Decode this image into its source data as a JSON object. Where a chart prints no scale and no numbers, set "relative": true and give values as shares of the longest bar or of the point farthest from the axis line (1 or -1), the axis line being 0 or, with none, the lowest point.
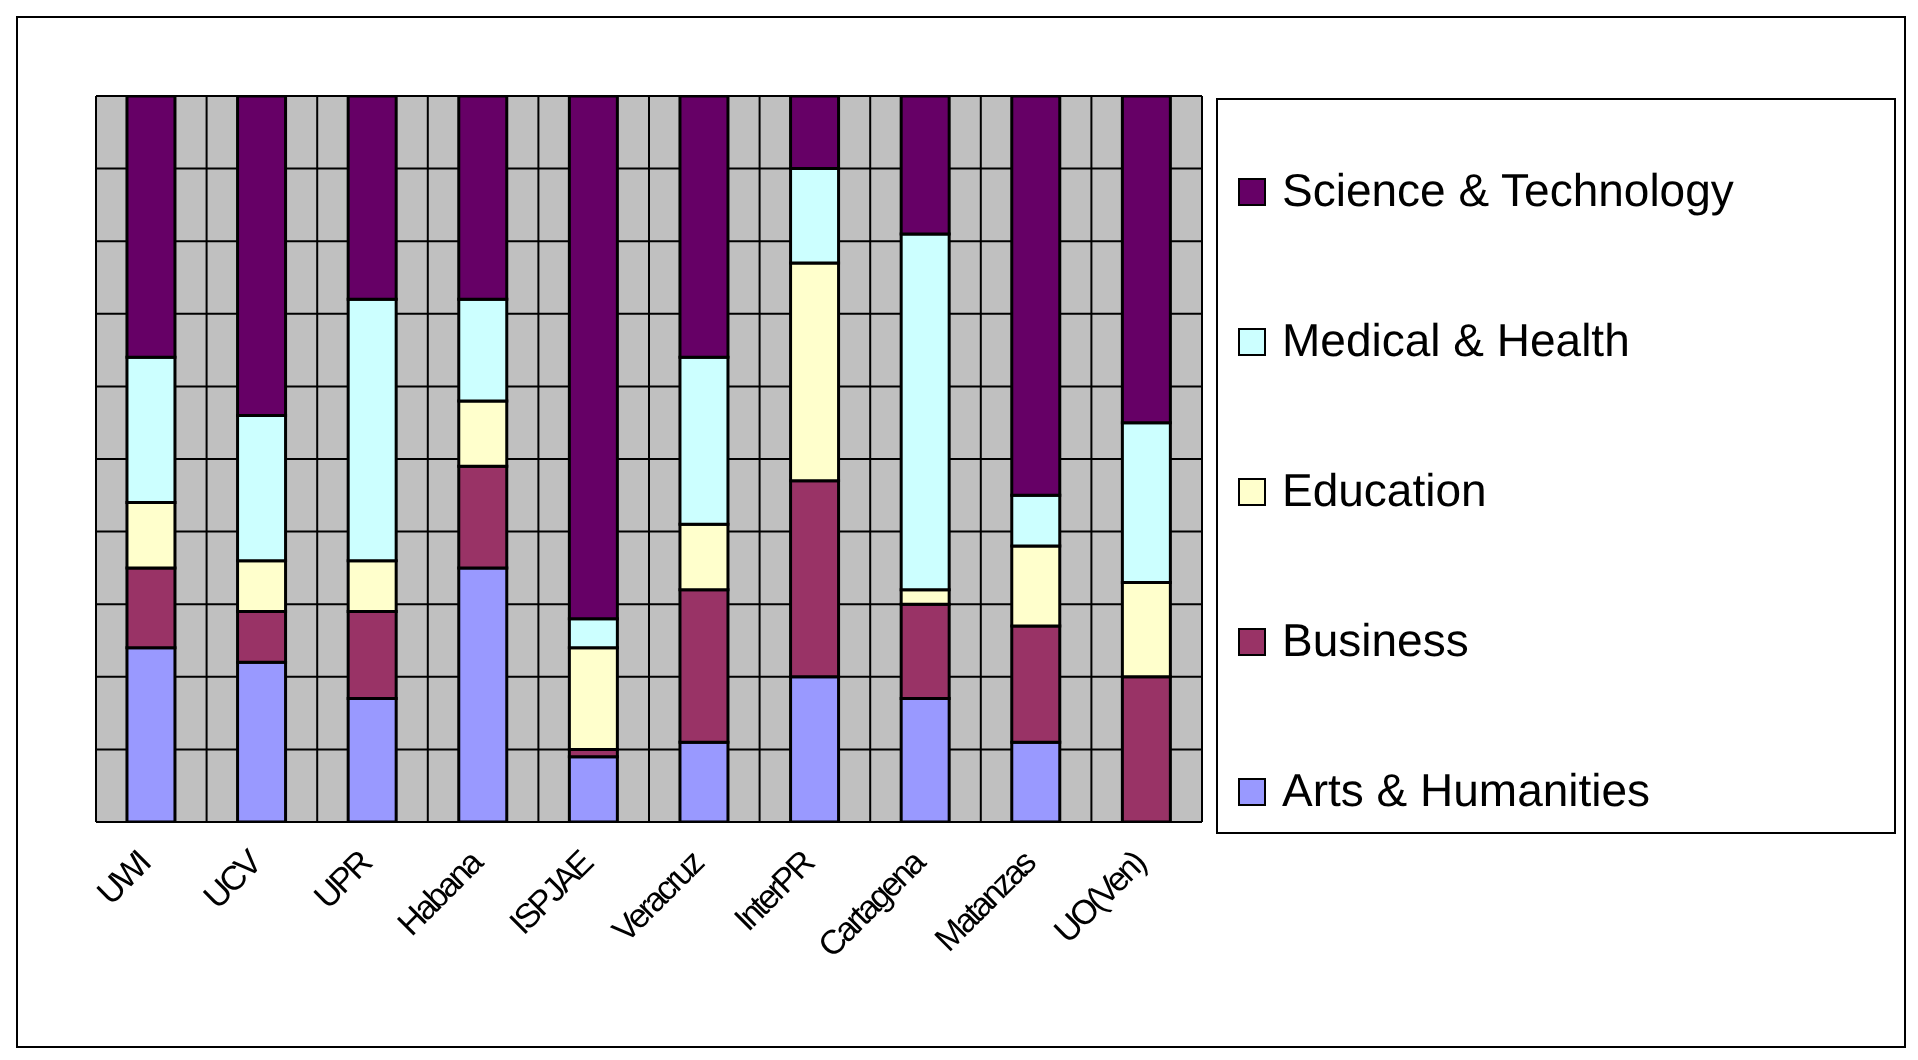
{
  "chart_data": {
    "type": "bar",
    "stacked": true,
    "relative": true,
    "grid": true,
    "legend": "right",
    "categories": [
      "UWI",
      "UCV",
      "UPR",
      "Habana",
      "ISPJAE",
      "Veracruz",
      "InterPR",
      "Cartagena",
      "Matanzas",
      "UO(Ven)"
    ],
    "series": [
      {
        "name": "Arts & Humanities",
        "color": "#9999ff",
        "values": [
          0.24,
          0.22,
          0.17,
          0.35,
          0.09,
          0.11,
          0.2,
          0.17,
          0.11,
          0
        ]
      },
      {
        "name": "Business",
        "color": "#993366",
        "values": [
          0.11,
          0.07,
          0.12,
          0.14,
          0.01,
          0.21,
          0.27,
          0.13,
          0.16,
          0.2
        ]
      },
      {
        "name": "Education",
        "color": "#ffffcc",
        "values": [
          0.09,
          0.07,
          0.07,
          0.09,
          0.14,
          0.09,
          0.3,
          0.02,
          0.11,
          0.13
        ]
      },
      {
        "name": "Medical & Health",
        "color": "#ccffff",
        "values": [
          0.2,
          0.2,
          0.36,
          0.14,
          0.04,
          0.23,
          0.13,
          0.49,
          0.07,
          0.22
        ]
      },
      {
        "name": "Science & Technology",
        "color": "#660066",
        "values": [
          0.36,
          0.44,
          0.28,
          0.28,
          0.72,
          0.36,
          0.1,
          0.19,
          0.55,
          0.45
        ]
      }
    ]
  }
}
